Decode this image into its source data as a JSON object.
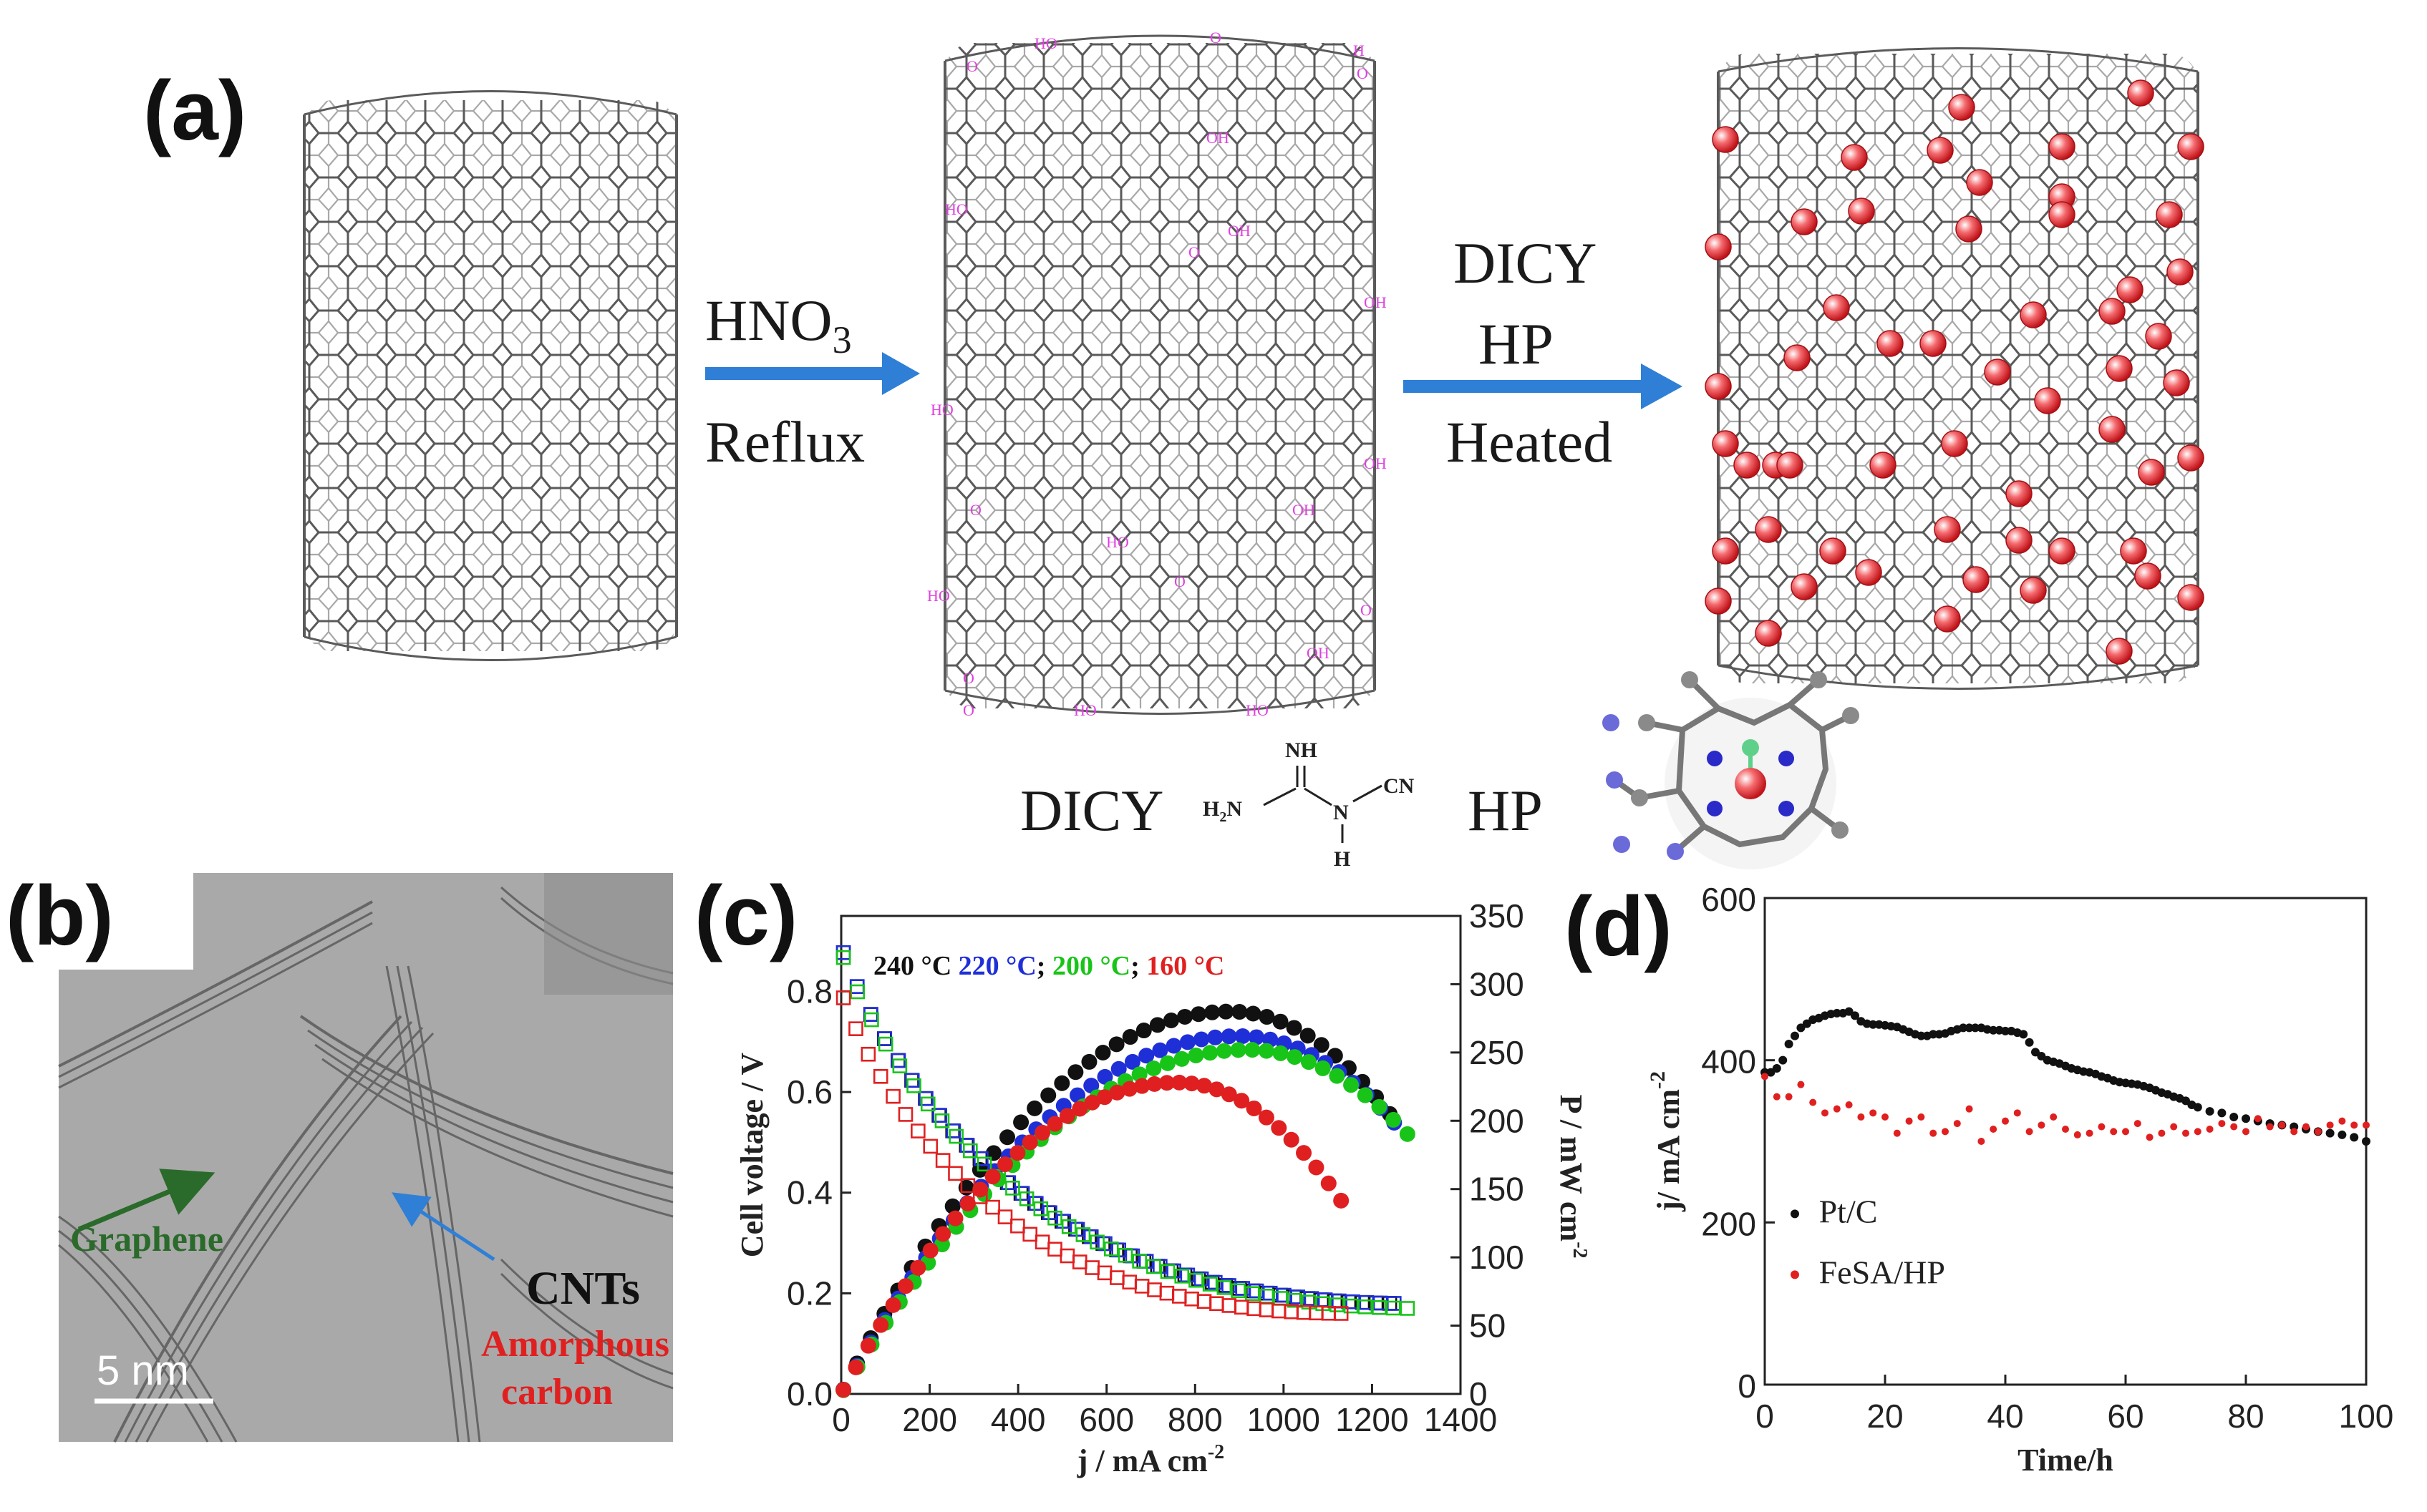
{
  "panel_a": {
    "label": "(a)",
    "step1": {
      "reagent": "HNO",
      "subscript": "3",
      "condition": "Reflux"
    },
    "step2": {
      "line1": "DICY",
      "line2": "HP",
      "line3": "Heated"
    },
    "legend_dicy": "DICY",
    "legend_hp": "HP",
    "dicy_formula": {
      "nh": "NH",
      "h2n": "H",
      "h2n_sub": "2",
      "h2n_n": "N",
      "n": "N",
      "cn": "CN",
      "h": "H"
    },
    "functional_groups": [
      "HO",
      "O",
      "H",
      "O",
      "O",
      "OH",
      "HO",
      "OH",
      "OH",
      "HO",
      "OH",
      "O",
      "O",
      "HO",
      "OH",
      "HO",
      "O",
      "OH",
      "O",
      "HO",
      "HO",
      "O",
      "O"
    ],
    "colors": {
      "arrow": "#2f7fd6",
      "sphere": "#e8343a",
      "group_text": "#e040e0"
    }
  },
  "panel_b": {
    "label": "(b)",
    "annotations": {
      "graphene": "Graphene",
      "cnts": "CNTs",
      "amorphous1": "Amorphous",
      "amorphous2": "carbon",
      "scale": "5  nm"
    },
    "colors": {
      "graphene": "#2a6a2a",
      "cnts": "#111111",
      "amorphous": "#e02020",
      "arrow_cnt": "#2f7fd6"
    }
  },
  "chart_data": [
    {
      "panel": "(c)",
      "type": "scatter",
      "xlabel": "j / mA cm",
      "xlabel_sup": "-2",
      "ylabel_left": "Cell voltage / V",
      "ylabel_right": "P / mW cm",
      "ylabel_right_sup": "-2",
      "xlim": [
        0,
        1400
      ],
      "ylim_left": [
        0.0,
        0.95
      ],
      "ylim_right": [
        0,
        350
      ],
      "xticks": [
        "0",
        "200",
        "400",
        "600",
        "800",
        "1000",
        "1200",
        "1400"
      ],
      "yticks_left": [
        "0.0",
        "0.2",
        "0.4",
        "0.6",
        "0.8"
      ],
      "yticks_right": [
        "0",
        "50",
        "100",
        "150",
        "200",
        "250",
        "300",
        "350"
      ],
      "legend_parts": [
        {
          "text": "240 °C ",
          "color": "#111111"
        },
        {
          "text": "220 °C",
          "color": "#1f2fd8"
        },
        {
          "text": "; ",
          "color": "#111111"
        },
        {
          "text": "200 °C",
          "color": "#19c419"
        },
        {
          "text": "; ",
          "color": "#111111"
        },
        {
          "text": "160 °C",
          "color": "#e02020"
        }
      ],
      "series": [
        {
          "name": "240 °C",
          "color": "#111111",
          "jmax": 1240,
          "v0": 0.89,
          "vend": 0.18,
          "pmax": 280,
          "jpeak": 880
        },
        {
          "name": "220 °C",
          "color": "#1f2fd8",
          "jmax": 1250,
          "v0": 0.89,
          "vend": 0.18,
          "pmax": 262,
          "jpeak": 900
        },
        {
          "name": "200 °C",
          "color": "#19c419",
          "jmax": 1280,
          "v0": 0.88,
          "vend": 0.17,
          "pmax": 252,
          "jpeak": 920
        },
        {
          "name": "160 °C",
          "color": "#e02020",
          "jmax": 1130,
          "v0": 0.8,
          "vend": 0.16,
          "pmax": 228,
          "jpeak": 760
        }
      ]
    },
    {
      "panel": "(d)",
      "type": "scatter",
      "xlabel": "Time/h",
      "ylabel": "j/ mA cm",
      "ylabel_sup": "-2",
      "xlim": [
        0,
        100
      ],
      "ylim": [
        0,
        600
      ],
      "xticks": [
        "0",
        "20",
        "40",
        "60",
        "80",
        "100"
      ],
      "yticks": [
        "0",
        "200",
        "400",
        "600"
      ],
      "series": [
        {
          "name": "Pt/C",
          "color": "#111111",
          "x": [
            0,
            1,
            2,
            3,
            4,
            5,
            6,
            7,
            8,
            9,
            10,
            11,
            12,
            13,
            14,
            15,
            16,
            17,
            18,
            19,
            20,
            21,
            22,
            23,
            24,
            25,
            26,
            27,
            28,
            29,
            30,
            31,
            32,
            33,
            34,
            35,
            36,
            37,
            38,
            39,
            40,
            41,
            42,
            43,
            44,
            45,
            46,
            47,
            48,
            49,
            50,
            51,
            52,
            53,
            54,
            55,
            56,
            57,
            58,
            59,
            60,
            61,
            62,
            63,
            64,
            65,
            66,
            67,
            68,
            69,
            70,
            71,
            72,
            74,
            76,
            78,
            80,
            82,
            84,
            86,
            88,
            90,
            92,
            94,
            96,
            98,
            100
          ],
          "y": [
            385,
            385,
            390,
            400,
            420,
            430,
            440,
            445,
            450,
            452,
            455,
            457,
            458,
            458,
            460,
            455,
            448,
            445,
            444,
            444,
            443,
            442,
            441,
            438,
            435,
            432,
            430,
            430,
            432,
            432,
            433,
            436,
            438,
            440,
            440,
            440,
            440,
            438,
            437,
            437,
            436,
            436,
            434,
            432,
            422,
            410,
            405,
            400,
            398,
            396,
            393,
            390,
            388,
            386,
            385,
            383,
            380,
            378,
            375,
            373,
            372,
            371,
            370,
            368,
            366,
            363,
            360,
            358,
            355,
            353,
            350,
            345,
            342,
            337,
            335,
            330,
            328,
            325,
            322,
            320,
            318,
            315,
            312,
            310,
            308,
            305,
            300
          ]
        },
        {
          "name": "FeSA/HP",
          "color": "#e02020",
          "x": [
            0,
            2,
            4,
            6,
            8,
            10,
            12,
            14,
            16,
            18,
            20,
            22,
            24,
            26,
            28,
            30,
            32,
            34,
            36,
            38,
            40,
            42,
            44,
            46,
            48,
            50,
            52,
            54,
            56,
            58,
            60,
            62,
            64,
            66,
            68,
            70,
            72,
            74,
            76,
            78,
            80,
            82,
            84,
            86,
            88,
            90,
            92,
            94,
            96,
            98,
            100
          ],
          "y": [
            380,
            355,
            355,
            370,
            348,
            335,
            340,
            345,
            330,
            335,
            330,
            310,
            325,
            330,
            310,
            312,
            322,
            340,
            300,
            315,
            325,
            335,
            312,
            320,
            330,
            315,
            308,
            310,
            318,
            312,
            312,
            322,
            305,
            310,
            318,
            310,
            312,
            315,
            322,
            318,
            312,
            328,
            318,
            320,
            312,
            318,
            312,
            320,
            325,
            320,
            320
          ]
        }
      ]
    }
  ],
  "panel_c": {
    "label": "(c)"
  },
  "panel_d": {
    "label": "(d)"
  }
}
